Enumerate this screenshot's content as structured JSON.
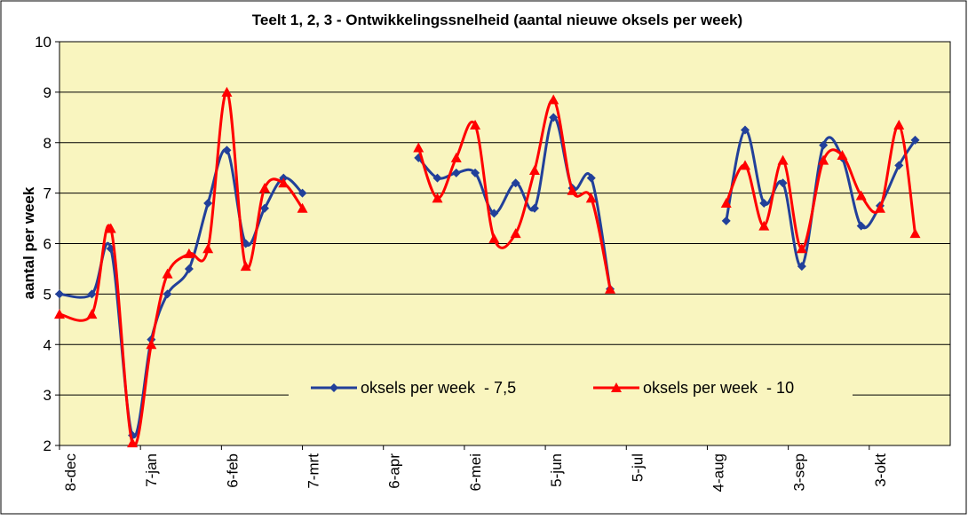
{
  "chart_data": {
    "type": "line",
    "title": "Teelt 1, 2, 3 - Ontwikkelingssnelheid (aantal nieuwe oksels per week)",
    "y_label": "aantal per week",
    "x": [
      0,
      12,
      19,
      27,
      34,
      40,
      48,
      55,
      62,
      69,
      76,
      83,
      90,
      133,
      140,
      147,
      154,
      161,
      169,
      176,
      183,
      190,
      197,
      204,
      247,
      254,
      261,
      268,
      275,
      283,
      290,
      297,
      304,
      311,
      317
    ],
    "series": [
      {
        "name": "oksels per week  - 7,5",
        "color": "#22409a",
        "marker": "diamond",
        "values": [
          5.0,
          5.0,
          5.9,
          2.2,
          4.1,
          5.0,
          5.5,
          6.8,
          7.85,
          6.0,
          6.7,
          7.3,
          7.0,
          7.7,
          7.3,
          7.4,
          7.4,
          6.6,
          7.2,
          6.7,
          8.5,
          7.1,
          7.3,
          5.1,
          6.45,
          8.25,
          6.8,
          7.2,
          5.55,
          7.95,
          7.7,
          6.35,
          6.75,
          7.55,
          8.05
        ]
      },
      {
        "name": "oksels per week  - 10",
        "color": "#ff0000",
        "marker": "triangle",
        "values": [
          4.6,
          4.6,
          6.3,
          2.05,
          4.0,
          5.4,
          5.8,
          5.9,
          9.0,
          5.55,
          7.1,
          7.2,
          6.7,
          7.9,
          6.9,
          7.7,
          8.35,
          6.1,
          6.2,
          7.45,
          8.85,
          7.05,
          6.9,
          5.1,
          6.8,
          7.55,
          6.35,
          7.65,
          5.9,
          7.65,
          7.75,
          6.95,
          6.7,
          8.35,
          6.2
        ]
      }
    ],
    "xlim": [
      0,
      330
    ],
    "xticks": [
      {
        "value": 0,
        "label": "8-dec"
      },
      {
        "value": 30,
        "label": "7-jan"
      },
      {
        "value": 60,
        "label": "6-feb"
      },
      {
        "value": 90,
        "label": "7-mrt"
      },
      {
        "value": 120,
        "label": "6-apr"
      },
      {
        "value": 150,
        "label": "6-mei"
      },
      {
        "value": 180,
        "label": "5-jun"
      },
      {
        "value": 210,
        "label": "5-jul"
      },
      {
        "value": 240,
        "label": "4-aug"
      },
      {
        "value": 270,
        "label": "3-sep"
      },
      {
        "value": 300,
        "label": "3-okt"
      }
    ],
    "ylim": [
      2,
      10
    ],
    "yticks": [
      2,
      3,
      4,
      5,
      6,
      7,
      8,
      9,
      10
    ],
    "grid": true,
    "legend": "bottom"
  }
}
